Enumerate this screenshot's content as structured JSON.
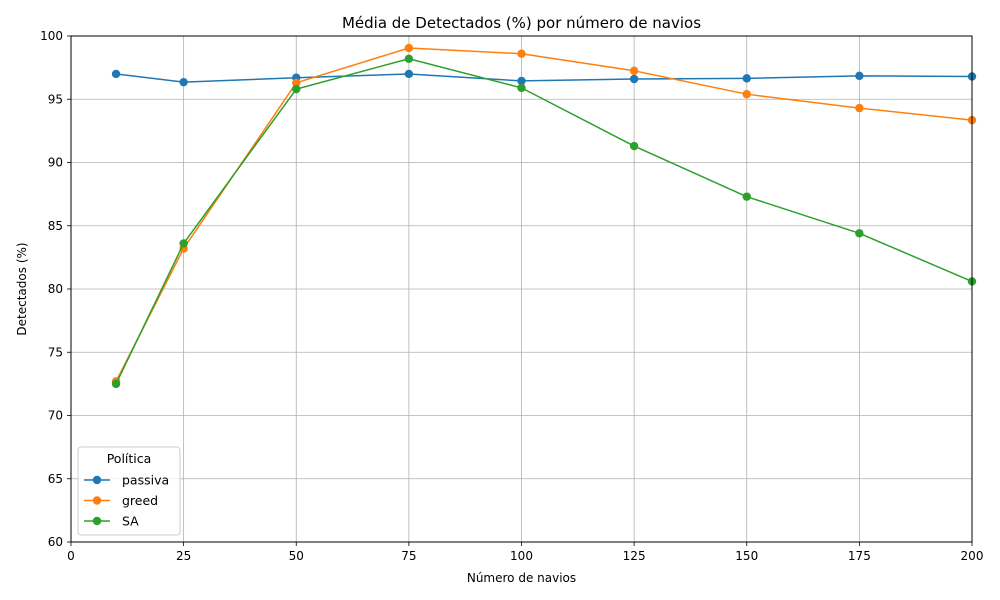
{
  "chart_data": {
    "type": "line",
    "title": "Média de Detectados (%) por número de navios",
    "xlabel": "Número de navios",
    "ylabel": "Detectados (%)",
    "xlim": [
      0,
      200
    ],
    "ylim": [
      60,
      100
    ],
    "xticks": [
      0,
      25,
      50,
      75,
      100,
      125,
      150,
      175,
      200
    ],
    "yticks": [
      60,
      65,
      70,
      75,
      80,
      85,
      90,
      95,
      100
    ],
    "x": [
      10,
      25,
      50,
      75,
      100,
      125,
      150,
      175,
      200
    ],
    "grid": true,
    "legend": {
      "title": "Política",
      "placement": "lower-left"
    },
    "series": [
      {
        "name": "passiva",
        "color": "#1f77b4",
        "marker": "circle",
        "values": [
          97.0,
          96.35,
          96.7,
          97.0,
          96.45,
          96.6,
          96.65,
          96.85,
          96.8
        ]
      },
      {
        "name": "greed",
        "color": "#ff7f0e",
        "marker": "circle",
        "values": [
          72.7,
          83.2,
          96.3,
          99.05,
          98.6,
          97.25,
          95.4,
          94.3,
          93.35
        ]
      },
      {
        "name": "SA",
        "color": "#2ca02c",
        "marker": "circle",
        "values": [
          72.5,
          83.6,
          95.8,
          98.2,
          95.9,
          91.3,
          87.3,
          84.4,
          80.6
        ]
      }
    ]
  }
}
